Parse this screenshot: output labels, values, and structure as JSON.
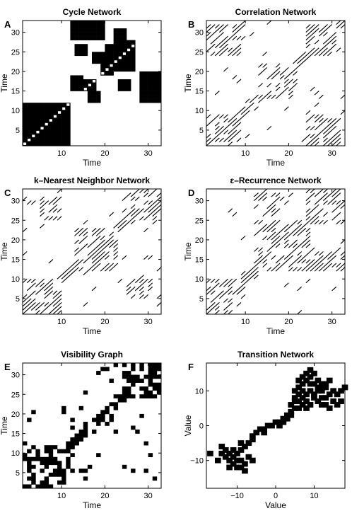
{
  "chart_data": [
    {
      "id": "A",
      "type": "heatmap",
      "title": "Cycle Network",
      "panel_label": "A",
      "xlabel": "Time",
      "ylabel": "Time",
      "xlim": [
        1,
        33
      ],
      "ylim": [
        1,
        33
      ],
      "xticks": [
        10,
        20,
        30
      ],
      "yticks": [
        5,
        10,
        15,
        20,
        25,
        30
      ],
      "diagonal": true,
      "blocks": [
        [
          1,
          11,
          1,
          11
        ],
        [
          12,
          19,
          28,
          33
        ],
        [
          20,
          26,
          20,
          26
        ],
        [
          28,
          33,
          12,
          19
        ],
        [
          15,
          17,
          15,
          17
        ],
        [
          19,
          21,
          19,
          21
        ],
        [
          12,
          14,
          15,
          18
        ],
        [
          21,
          23,
          22,
          24
        ],
        [
          16,
          18,
          12,
          14
        ],
        [
          24,
          26,
          25,
          27
        ],
        [
          22,
          24,
          27,
          30
        ],
        [
          13,
          15,
          24,
          26
        ],
        [
          17,
          19,
          22,
          24
        ],
        [
          23,
          25,
          15,
          17
        ]
      ]
    },
    {
      "id": "B",
      "type": "heatmap",
      "title": "Correlation Network",
      "panel_label": "B",
      "xlabel": "Time",
      "ylabel": "Time",
      "xlim": [
        1,
        33
      ],
      "ylim": [
        1,
        33
      ],
      "xticks": [
        10,
        20,
        30
      ],
      "yticks": [
        5,
        10,
        15,
        20,
        25,
        30
      ],
      "diagonal": true,
      "blocks": [
        [
          1,
          8,
          1,
          8
        ],
        [
          1,
          8,
          24,
          31
        ],
        [
          24,
          31,
          1,
          8
        ],
        [
          24,
          31,
          24,
          31
        ],
        [
          13,
          21,
          13,
          21
        ],
        [
          10,
          12,
          10,
          12
        ]
      ]
    },
    {
      "id": "C",
      "type": "heatmap",
      "title": "k–Nearest Neighbor Network",
      "panel_label": "C",
      "xlabel": "Time",
      "ylabel": "Time",
      "xlim": [
        1,
        33
      ],
      "ylim": [
        1,
        33
      ],
      "xticks": [
        10,
        20,
        30
      ],
      "yticks": [
        5,
        10,
        15,
        20,
        25,
        30
      ],
      "diagonal": true,
      "blocks": [
        [
          1,
          9,
          1,
          9
        ],
        [
          24,
          32,
          24,
          32
        ],
        [
          13,
          22,
          12,
          22
        ],
        [
          5,
          9,
          25,
          30
        ],
        [
          25,
          30,
          5,
          9
        ]
      ]
    },
    {
      "id": "D",
      "type": "heatmap",
      "title": "ε–Recurrence Network",
      "panel_label": "D",
      "xlabel": "Time",
      "ylabel": "Time",
      "xlim": [
        1,
        33
      ],
      "ylim": [
        1,
        33
      ],
      "xticks": [
        10,
        20,
        30
      ],
      "yticks": [
        5,
        10,
        15,
        20,
        25,
        30
      ],
      "diagonal": true,
      "blocks": [
        [
          1,
          9,
          1,
          9
        ],
        [
          24,
          32,
          24,
          32
        ],
        [
          12,
          24,
          12,
          24
        ],
        [
          12,
          17,
          24,
          32
        ],
        [
          24,
          32,
          12,
          17
        ]
      ]
    },
    {
      "id": "E",
      "type": "heatmap",
      "title": "Visibility Graph",
      "panel_label": "E",
      "xlabel": "Time",
      "ylabel": "Time",
      "xlim": [
        1,
        33
      ],
      "ylim": [
        1,
        33
      ],
      "xticks": [
        10,
        20,
        30
      ],
      "yticks": [
        5,
        10,
        15,
        20,
        25,
        30
      ],
      "diagonal": true,
      "blocks": [
        [
          1,
          11,
          1,
          11
        ],
        [
          24,
          32,
          24,
          32
        ],
        [
          15,
          17,
          15,
          17
        ],
        [
          19,
          21,
          19,
          21
        ],
        [
          22,
          24,
          22,
          24
        ]
      ]
    },
    {
      "id": "F",
      "type": "heatmap",
      "title": "Transition Network",
      "panel_label": "F",
      "xlabel": "Value",
      "ylabel": "Value",
      "xlim": [
        -18,
        18
      ],
      "ylim": [
        -18,
        18
      ],
      "xticks": [
        -10,
        0,
        10
      ],
      "yticks": [
        -10,
        0,
        10
      ],
      "cells": [
        [
          -17,
          -8
        ],
        [
          -15,
          -10
        ],
        [
          -14,
          -8
        ],
        [
          -13,
          -9
        ],
        [
          -12,
          -10
        ],
        [
          -11,
          -11
        ],
        [
          -10,
          -10
        ],
        [
          -9,
          -12
        ],
        [
          -8,
          -13
        ],
        [
          -14,
          -6
        ],
        [
          -13,
          -7
        ],
        [
          -12,
          -8
        ],
        [
          -11,
          -9
        ],
        [
          -10,
          -8
        ],
        [
          -9,
          -7
        ],
        [
          -8,
          -6
        ],
        [
          -7,
          -5
        ],
        [
          -6,
          -4
        ],
        [
          -10,
          -12
        ],
        [
          -8,
          -11
        ],
        [
          -7,
          -9
        ],
        [
          -6,
          -10
        ],
        [
          -9,
          -10
        ],
        [
          -12,
          -12
        ],
        [
          -11,
          -7
        ],
        [
          -9,
          -5
        ],
        [
          -6,
          -3
        ],
        [
          -5,
          -2
        ],
        [
          -4,
          -1
        ],
        [
          -3,
          -1
        ],
        [
          -2,
          0
        ],
        [
          -1,
          0
        ],
        [
          0,
          1
        ],
        [
          1,
          1
        ],
        [
          2,
          2
        ],
        [
          3,
          2
        ],
        [
          4,
          3
        ],
        [
          -3,
          -2
        ],
        [
          1,
          0
        ],
        [
          2,
          1
        ],
        [
          3,
          3
        ],
        [
          4,
          4
        ],
        [
          5,
          5
        ],
        [
          6,
          5
        ],
        [
          7,
          6
        ],
        [
          8,
          7
        ],
        [
          5,
          8
        ],
        [
          6,
          7
        ],
        [
          7,
          8
        ],
        [
          8,
          5
        ],
        [
          9,
          6
        ],
        [
          10,
          8
        ],
        [
          11,
          7
        ],
        [
          12,
          6
        ],
        [
          13,
          8
        ],
        [
          14,
          9
        ],
        [
          15,
          10
        ],
        [
          16,
          9
        ],
        [
          17,
          10
        ],
        [
          18,
          11
        ],
        [
          8,
          9
        ],
        [
          9,
          10
        ],
        [
          10,
          9
        ],
        [
          12,
          10
        ],
        [
          13,
          11
        ],
        [
          5,
          10
        ],
        [
          6,
          11
        ],
        [
          7,
          12
        ],
        [
          8,
          13
        ],
        [
          9,
          14
        ],
        [
          10,
          15
        ],
        [
          11,
          13
        ],
        [
          12,
          11
        ],
        [
          13,
          12
        ],
        [
          14,
          13
        ],
        [
          6,
          13
        ],
        [
          7,
          14
        ],
        [
          8,
          15
        ],
        [
          9,
          16
        ],
        [
          10,
          12
        ],
        [
          11,
          10
        ],
        [
          12,
          8
        ],
        [
          13,
          6
        ],
        [
          14,
          5
        ],
        [
          4,
          6
        ],
        [
          5,
          7
        ],
        [
          6,
          9
        ],
        [
          7,
          10
        ],
        [
          9,
          12
        ],
        [
          11,
          11
        ],
        [
          12,
          12
        ],
        [
          15,
          7
        ],
        [
          16,
          6
        ],
        [
          17,
          7
        ]
      ]
    }
  ]
}
